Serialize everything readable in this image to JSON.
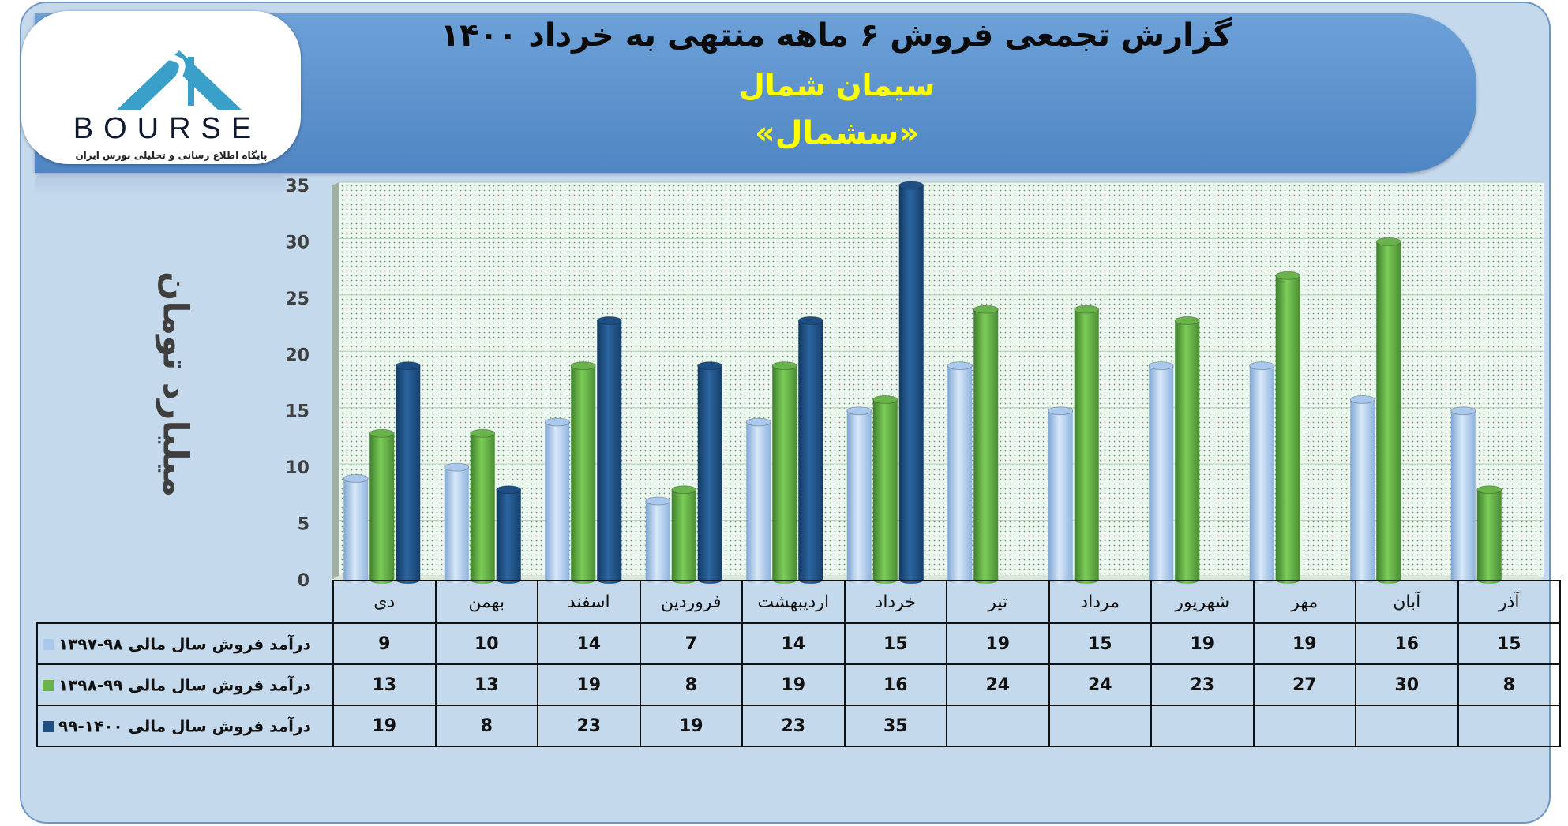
{
  "header": {
    "title": "گزارش تجمعی فروش ۶ ماهه منتهی به خرداد ۱۴۰۰",
    "company": "سیمان شمال",
    "ticker": "«سشمال»"
  },
  "logo": {
    "brand": "BOURSE",
    "tagline": "پایگاه اطلاع رسانی و تحلیلی بورس ایران",
    "mark_color": "#3aa0c9"
  },
  "colors": {
    "series_1": "#a9c8ec",
    "series_2": "#6ab24c",
    "series_3": "#1f4f82",
    "plot_background": "#e8f3ea",
    "frame_background": "#c4d9ec"
  },
  "chart_data": {
    "type": "bar",
    "ylabel": "میلیارد تومان",
    "ylim": [
      0,
      35
    ],
    "yticks": [
      0,
      5,
      10,
      15,
      20,
      25,
      30,
      35
    ],
    "grid": true,
    "legend": "table-left",
    "categories": [
      "دی",
      "بهمن",
      "اسفند",
      "فروردین",
      "اردیبهشت",
      "خرداد",
      "تیر",
      "مرداد",
      "شهریور",
      "مهر",
      "آبان",
      "آذر"
    ],
    "series": [
      {
        "name": "درآمد فروش سال مالی ۹۸-۱۳۹۷",
        "values": [
          9,
          10,
          14,
          7,
          14,
          15,
          19,
          15,
          19,
          19,
          16,
          15
        ]
      },
      {
        "name": "درآمد فروش سال مالی ۹۹-۱۳۹۸",
        "values": [
          13,
          13,
          19,
          8,
          19,
          16,
          24,
          24,
          23,
          27,
          30,
          8
        ]
      },
      {
        "name": "درآمد فروش سال مالی ۱۴۰۰-۹۹",
        "values": [
          19,
          8,
          23,
          19,
          23,
          35,
          null,
          null,
          null,
          null,
          null,
          null
        ]
      }
    ]
  }
}
